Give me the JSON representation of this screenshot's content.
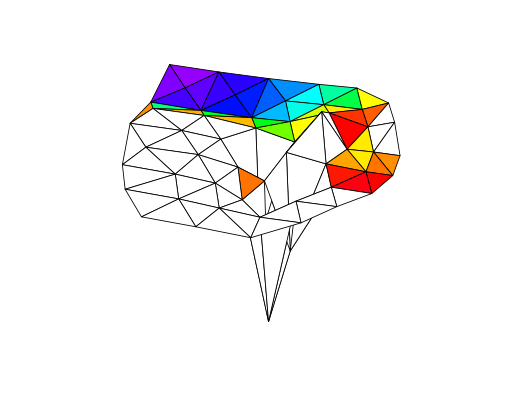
{
  "chart_data": {
    "type": "trisurf",
    "tick_labels": false,
    "xlim": [
      0,
      10
    ],
    "ylim": [
      0,
      8
    ],
    "zlim": [
      -6,
      2.5
    ],
    "color_range": [
      0,
      1
    ],
    "vertices": [
      [
        0,
        8,
        0.1
      ],
      [
        2,
        8,
        0.15
      ],
      [
        4,
        8,
        0.25
      ],
      [
        6,
        8,
        0.4
      ],
      [
        7.5,
        8,
        0.55
      ],
      [
        1,
        7,
        0.12
      ],
      [
        3,
        7,
        0.2
      ],
      [
        5,
        7,
        0.35
      ],
      [
        6.5,
        7,
        0.5
      ],
      [
        8,
        7,
        0.6
      ],
      [
        9,
        7,
        1.2
      ],
      [
        0,
        6,
        0.2
      ],
      [
        2,
        6,
        0.22
      ],
      [
        4,
        6,
        0.3
      ],
      [
        5.5,
        6,
        0.45
      ],
      [
        7,
        6,
        1.3
      ],
      [
        8.5,
        6,
        0.9
      ],
      [
        9.5,
        6,
        1.4
      ],
      [
        0.5,
        5,
        1.1
      ],
      [
        2.5,
        5,
        1.2
      ],
      [
        4.5,
        5,
        1.0
      ],
      [
        6,
        5,
        0.6
      ],
      [
        7,
        5,
        2.5
      ],
      [
        8,
        5,
        0.7
      ],
      [
        9,
        5,
        0.8
      ],
      [
        10,
        5,
        0.85
      ],
      [
        0,
        4,
        1.3
      ],
      [
        2,
        4,
        1.4
      ],
      [
        3.5,
        4,
        1.3
      ],
      [
        5,
        4,
        -4
      ],
      [
        6,
        4,
        1.2
      ],
      [
        7.5,
        4,
        0.95
      ],
      [
        9,
        4,
        0.9
      ],
      [
        10,
        4,
        0.95
      ],
      [
        1,
        3,
        1.4
      ],
      [
        3,
        3,
        1.5
      ],
      [
        4.5,
        3,
        1.2
      ],
      [
        5.5,
        3,
        0.7
      ],
      [
        6.5,
        3,
        -3
      ],
      [
        8,
        3,
        1.0
      ],
      [
        9.5,
        3,
        1.05
      ],
      [
        0.5,
        2,
        1.5
      ],
      [
        2.5,
        2,
        1.5
      ],
      [
        4,
        2,
        1.4
      ],
      [
        5,
        2,
        0.75
      ],
      [
        6,
        2,
        -6
      ],
      [
        7,
        2,
        1.2
      ],
      [
        8.5,
        2,
        1.3
      ],
      [
        1,
        1,
        1.5
      ],
      [
        3,
        1,
        1.5
      ],
      [
        4.5,
        1,
        1.4
      ],
      [
        6,
        1,
        1.3
      ],
      [
        7.5,
        1,
        1.4
      ],
      [
        2,
        0,
        1.5
      ],
      [
        4,
        0,
        1.5
      ],
      [
        6,
        0,
        1.45
      ]
    ]
  }
}
